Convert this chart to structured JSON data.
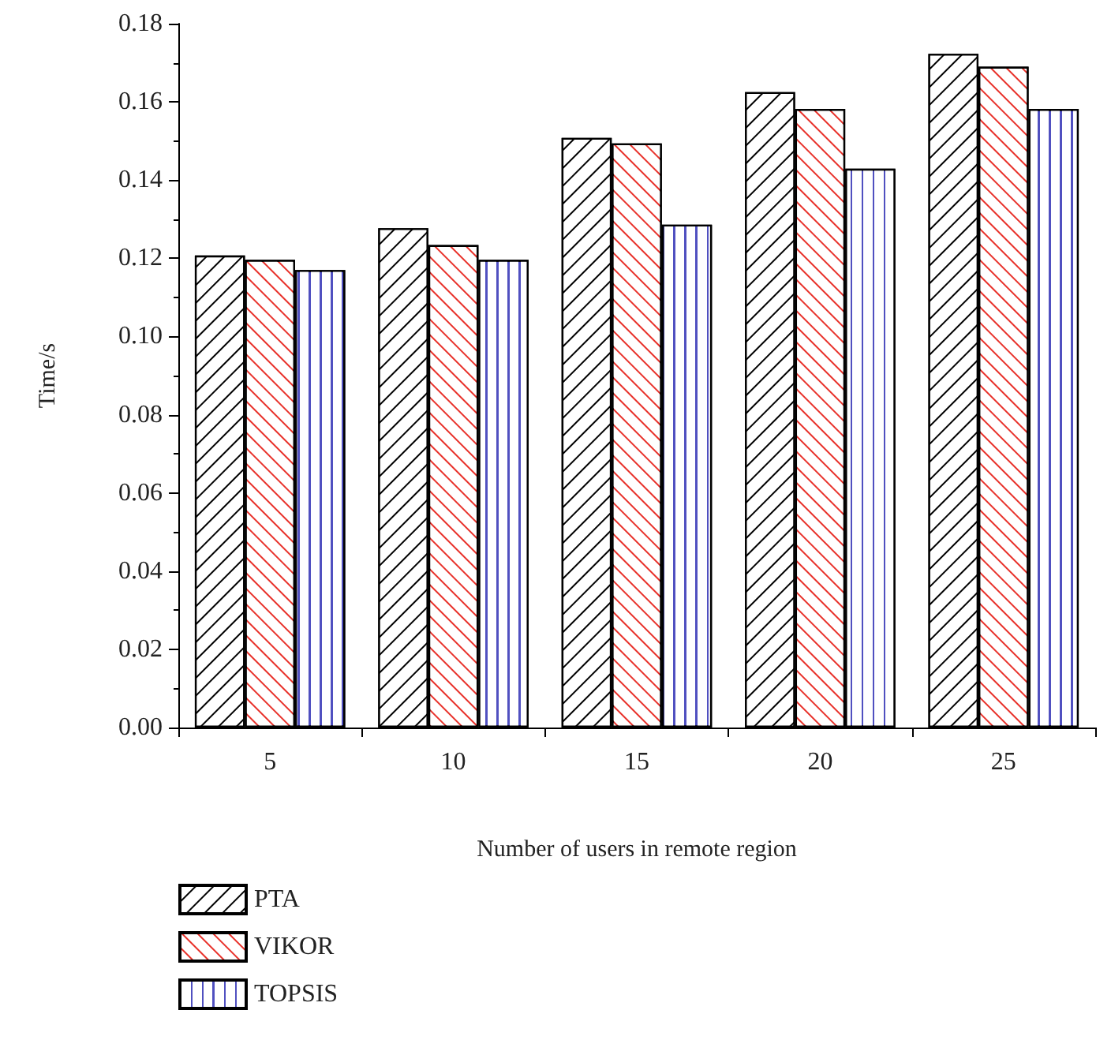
{
  "chart_data": {
    "type": "bar",
    "xlabel": "Number of users in remote region",
    "ylabel": "Time/s",
    "categories": [
      "5",
      "10",
      "15",
      "20",
      "25"
    ],
    "series": [
      {
        "name": "PTA",
        "color": "#000000",
        "values": [
          0.1207,
          0.1277,
          0.1508,
          0.1625,
          0.1723
        ]
      },
      {
        "name": "VIKOR",
        "color": "#e8312a",
        "values": [
          0.1196,
          0.1234,
          0.1494,
          0.1582,
          0.169
        ]
      },
      {
        "name": "TOPSIS",
        "color": "#5050c0",
        "values": [
          0.117,
          0.1196,
          0.1286,
          0.1429,
          0.1582
        ]
      }
    ],
    "ylim": [
      0,
      0.18
    ],
    "yticks": [
      {
        "value": 0,
        "label": "0.00"
      },
      {
        "value": 0.02,
        "label": "0.02"
      },
      {
        "value": 0.04,
        "label": "0.04"
      },
      {
        "value": 0.06,
        "label": "0.06"
      },
      {
        "value": 0.08,
        "label": "0.08"
      },
      {
        "value": 0.1,
        "label": "0.10"
      },
      {
        "value": 0.12,
        "label": "0.12"
      },
      {
        "value": 0.14,
        "label": "0.14"
      },
      {
        "value": 0.16,
        "label": "0.16"
      },
      {
        "value": 0.18,
        "label": "0.18"
      }
    ],
    "legend": "bottom left",
    "grid": false
  }
}
